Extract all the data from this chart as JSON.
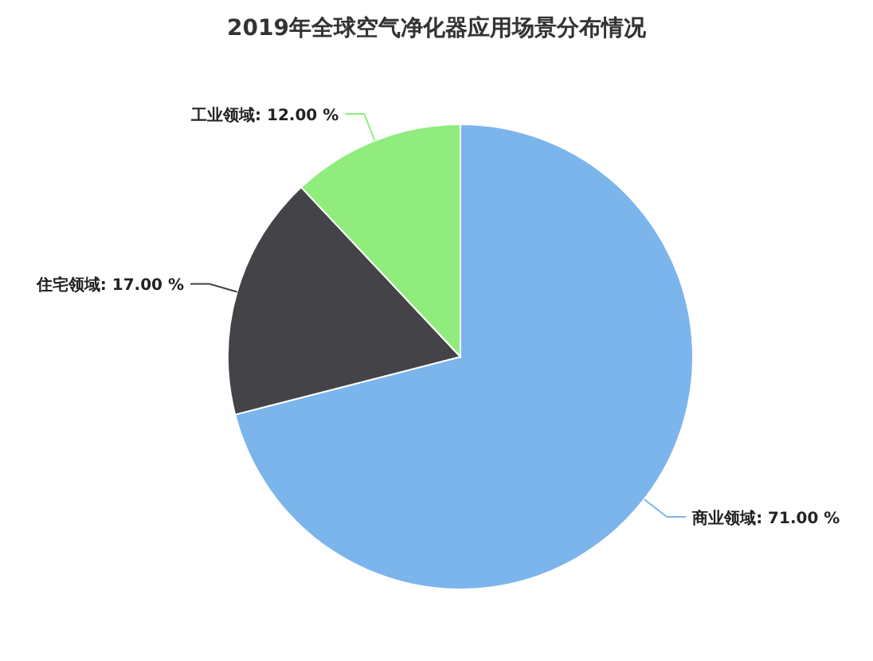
{
  "chart_data": {
    "type": "pie",
    "title": "2019年全球空气净化器应用场景分布情况",
    "categories": [
      "商业领域",
      "住宅领域",
      "工业领域"
    ],
    "values": [
      71,
      17,
      12
    ],
    "colors": [
      "#7cb5ec",
      "#434348",
      "#90ed7d"
    ],
    "value_labels": [
      "71.00 %",
      "17.00 %",
      "12.00 %"
    ],
    "legend": false
  }
}
